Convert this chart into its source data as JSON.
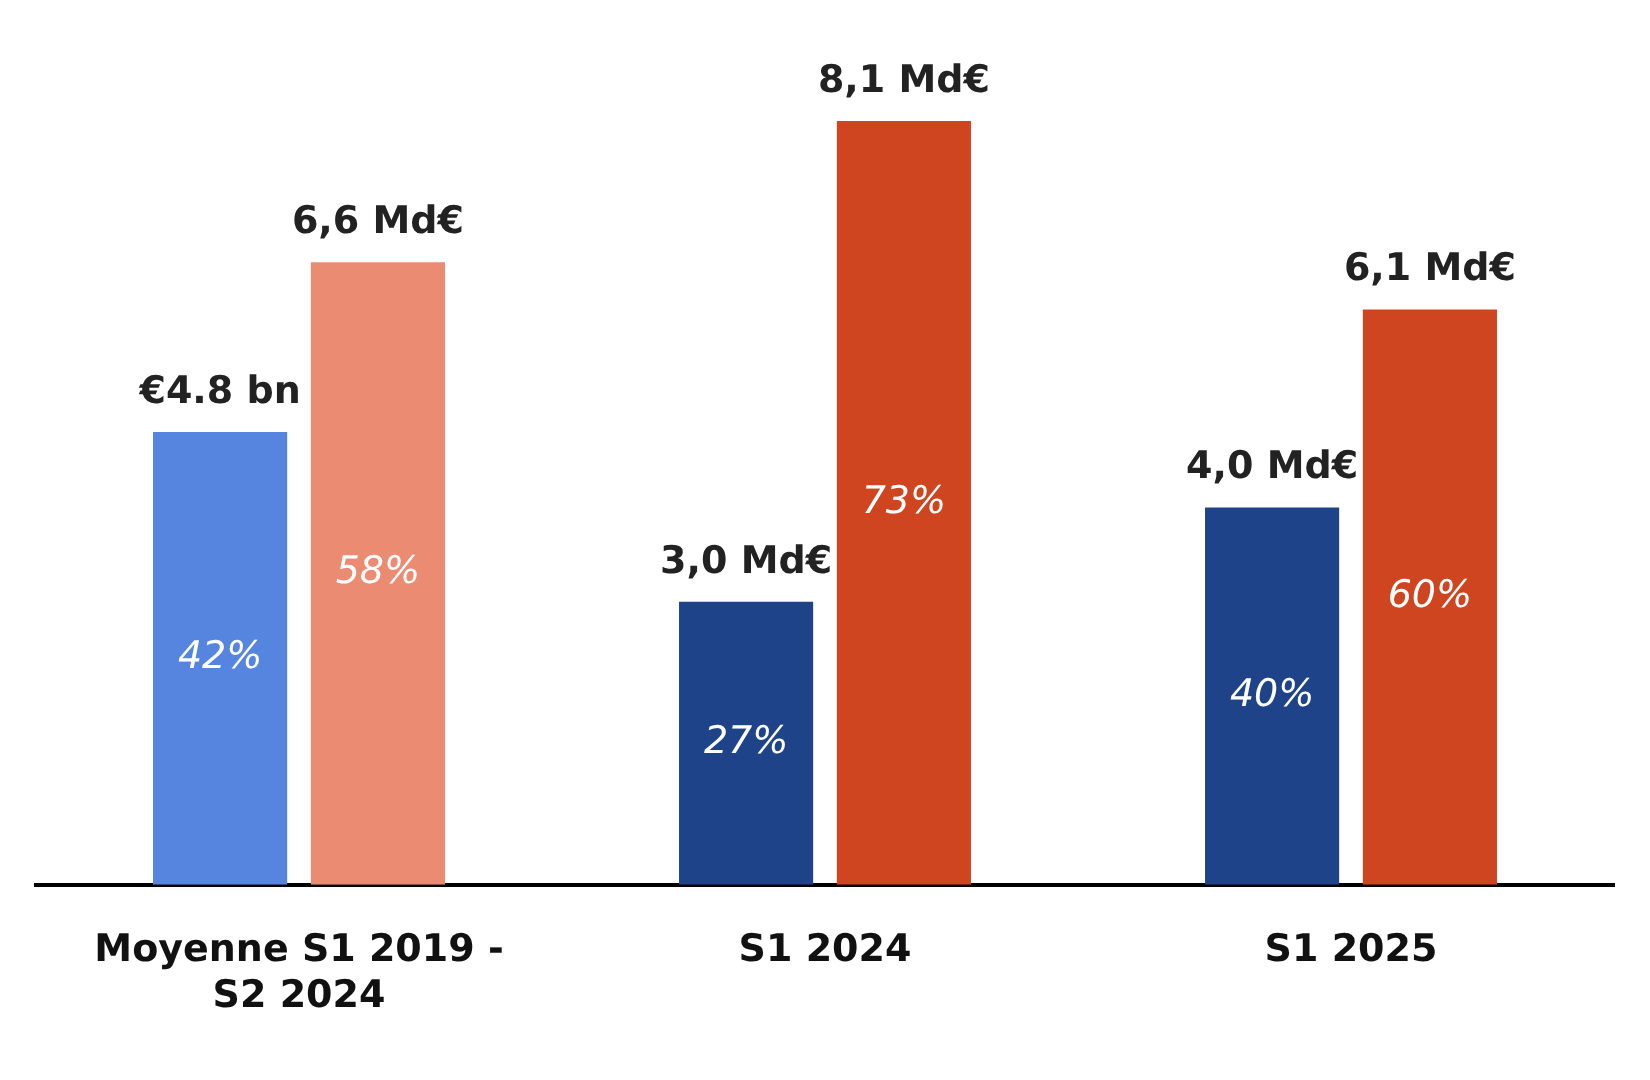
{
  "chart_data": {
    "type": "bar",
    "categories": [
      "Moyenne S1 2019 - S2 2024",
      "S1 2024",
      "S1 2025"
    ],
    "series": [
      {
        "colors": [
          "#5585de",
          "#1e4389",
          "#1e4389"
        ],
        "values": [
          4.8,
          3.0,
          4.0
        ],
        "value_labels": [
          "€4.8 bn",
          "3,0 Md€",
          "4,0 Md€"
        ]
      },
      {
        "colors": [
          "#eb8b72",
          "#cf4520",
          "#cf4520"
        ],
        "values": [
          6.6,
          8.1,
          6.1
        ],
        "value_labels": [
          "6,6 Md€",
          "8,1 Md€",
          "6,1 Md€"
        ]
      }
    ],
    "annotations": [
      "42%",
      "58%",
      "27%",
      "73%",
      "40%",
      "60%"
    ],
    "grid": false,
    "legend": false
  }
}
